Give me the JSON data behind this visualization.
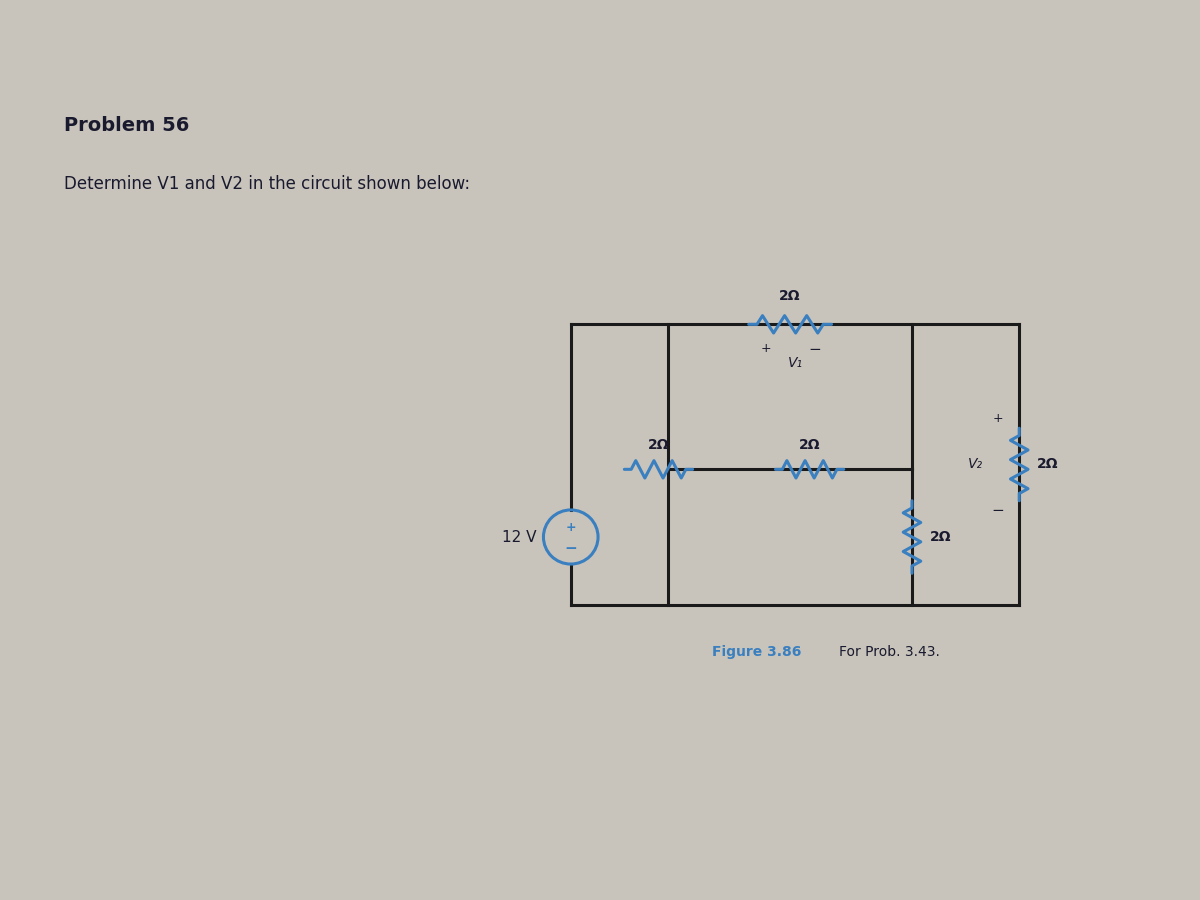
{
  "title": "Problem 56",
  "subtitle": "Determine V1 and V2 in the circuit shown below:",
  "figure_caption": "Figure 3.86",
  "figure_caption2": "For Prob. 3.43.",
  "bg_color": "#c8c4bc",
  "text_color": "#1a1a2e",
  "circuit_wire_color": "#1a1a1a",
  "blue_color": "#3a7fbf",
  "resistor_labels": [
    "2Ω",
    "2Ω",
    "2Ω",
    "2Ω",
    "2Ω"
  ],
  "source_label": "12 V"
}
